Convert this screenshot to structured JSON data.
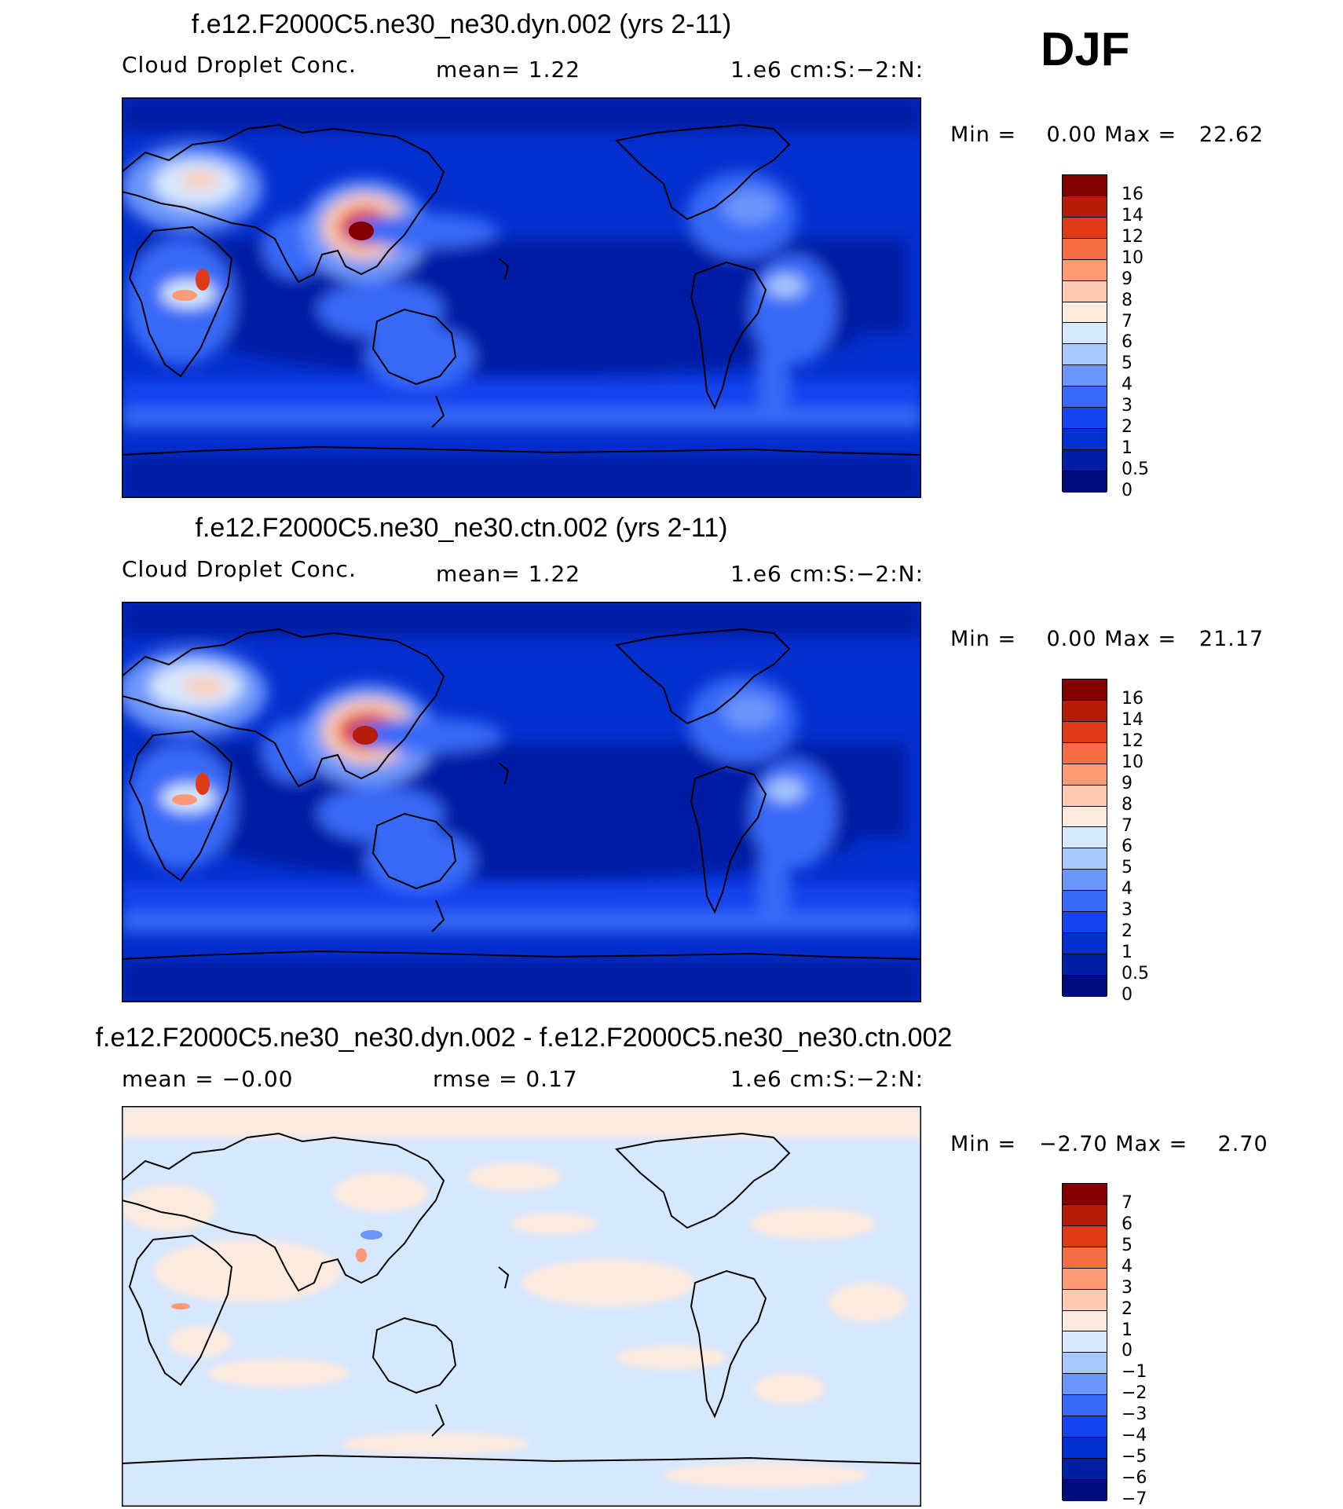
{
  "season_label": "DJF",
  "colors": {
    "abs": [
      "#000c7e",
      "#021ea5",
      "#0530d0",
      "#1443ef",
      "#3969f7",
      "#6c95fb",
      "#a7c7fd",
      "#d6e8fe",
      "#fdeadf",
      "#fdcbb1",
      "#fb9a74",
      "#f56d43",
      "#df3a16",
      "#b51c0a",
      "#840000"
    ],
    "diff": [
      "#000c7e",
      "#021ea5",
      "#0530d0",
      "#1443ef",
      "#3969f7",
      "#6c95fb",
      "#a7c7fd",
      "#d6e8fe",
      "#fdeadf",
      "#fdcbb1",
      "#fb9a74",
      "#f56d43",
      "#df3a16",
      "#b51c0a",
      "#840000"
    ]
  },
  "chart_data": [
    {
      "type": "heatmap",
      "title": "f.e12.F2000C5.ne30_ne30.dyn.002 (yrs 2-11)",
      "variable": "Cloud Droplet Conc.",
      "mean_text": "mean=    1.22",
      "units": "1.e6 cm:S:−2:N:",
      "minmax_text": "Min =    0.00 Max =   22.62",
      "min": 0.0,
      "max": 22.62,
      "contour_levels": [
        "16",
        "14",
        "12",
        "10",
        "9",
        "8",
        "7",
        "6",
        "5",
        "4",
        "3",
        "2",
        "1",
        "0.5",
        "0"
      ],
      "projection": "cylindrical equidistant, centered 180"
    },
    {
      "type": "heatmap",
      "title": "f.e12.F2000C5.ne30_ne30.ctn.002 (yrs 2-11)",
      "variable": "Cloud Droplet Conc.",
      "mean_text": "mean=    1.22",
      "units": "1.e6 cm:S:−2:N:",
      "minmax_text": "Min =    0.00 Max =   21.17",
      "min": 0.0,
      "max": 21.17,
      "contour_levels": [
        "16",
        "14",
        "12",
        "10",
        "9",
        "8",
        "7",
        "6",
        "5",
        "4",
        "3",
        "2",
        "1",
        "0.5",
        "0"
      ],
      "projection": "cylindrical equidistant, centered 180"
    },
    {
      "type": "heatmap",
      "title": "f.e12.F2000C5.ne30_ne30.dyn.002 - f.e12.F2000C5.ne30_ne30.ctn.002",
      "mean_text": "mean =   −0.00",
      "rmse_text": "rmse =    0.17",
      "units": "1.e6 cm:S:−2:N:",
      "minmax_text": "Min =   −2.70 Max =    2.70",
      "min": -2.7,
      "max": 2.7,
      "contour_levels": [
        "7",
        "6",
        "5",
        "4",
        "3",
        "2",
        "1",
        "0",
        "−1",
        "−2",
        "−3",
        "−4",
        "−5",
        "−6",
        "−7"
      ],
      "projection": "cylindrical equidistant, centered 180"
    }
  ]
}
